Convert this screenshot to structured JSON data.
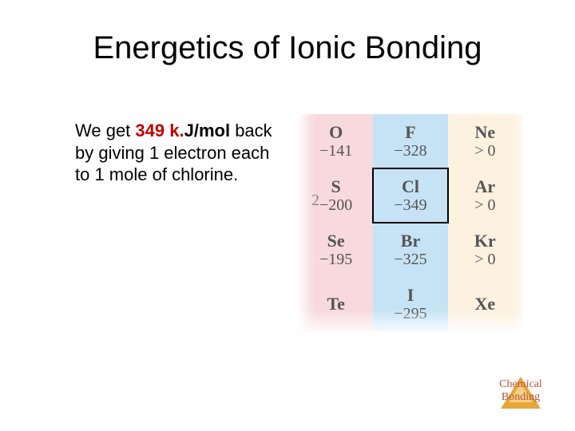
{
  "title": "Energetics of Ionic Bonding",
  "body": {
    "pre": "We get ",
    "highlight": "349 k",
    "dot": ".",
    "post_bold": "J/mol",
    "rest": " back by giving 1 electron each to 1 mole of chlorine."
  },
  "table": {
    "col_colors": [
      "#f7d9de",
      "#c6e3f5",
      "#fdf1e0"
    ],
    "highlight_cell": {
      "row": 1,
      "col": 1
    },
    "rows": [
      [
        {
          "sym": "O",
          "val": "−141"
        },
        {
          "sym": "F",
          "val": "−328"
        },
        {
          "sym": "Ne",
          "val": "> 0"
        }
      ],
      [
        {
          "sym": "S",
          "val": "−200"
        },
        {
          "sym": "Cl",
          "val": "−349"
        },
        {
          "sym": "Ar",
          "val": "> 0"
        }
      ],
      [
        {
          "sym": "Se",
          "val": "−195"
        },
        {
          "sym": "Br",
          "val": "−325"
        },
        {
          "sym": "Kr",
          "val": "> 0"
        }
      ],
      [
        {
          "sym": "Te",
          "val": ""
        },
        {
          "sym": "I",
          "val": "−295"
        },
        {
          "sym": "Xe",
          "val": ""
        }
      ]
    ],
    "left_partial": "2"
  },
  "footer": {
    "line1": "Chemical",
    "line2": "Bonding",
    "triangle_outer": "#e7a63a",
    "triangle_inner": "#f5cf84",
    "text_color": "#b5533a"
  },
  "style": {
    "title_fontsize": 40,
    "body_fontsize": 22,
    "table_sym_fontsize": 22,
    "table_val_fontsize": 20,
    "highlight_color": "#c00000",
    "background": "#ffffff"
  }
}
